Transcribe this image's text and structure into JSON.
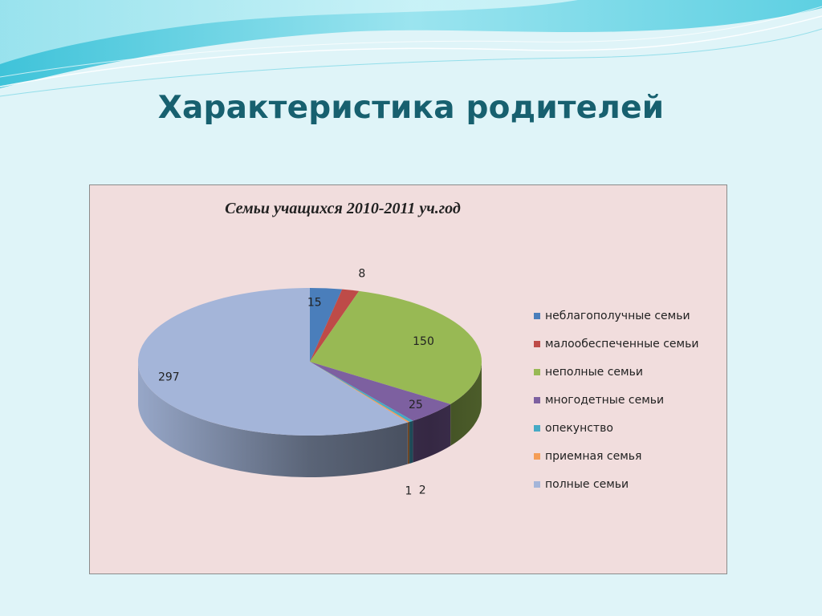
{
  "slide": {
    "title": "Характеристика родителей"
  },
  "chart_data": {
    "type": "pie",
    "title": "Семьи учащихся 2010-2011 уч.год",
    "categories": [
      "неблагополучные семьи",
      "малообеспеченные семьи",
      "неполные семьи",
      "многодетные семьи",
      "опекунство",
      "приемная семья",
      "полные семьи"
    ],
    "values": [
      15,
      8,
      150,
      25,
      2,
      1,
      297
    ],
    "colors": [
      "#4a7ebb",
      "#be4b48",
      "#98b954",
      "#7d60a0",
      "#46aac5",
      "#f59d56",
      "#a4b5d9"
    ],
    "legend_position": "right",
    "three_d": true
  }
}
